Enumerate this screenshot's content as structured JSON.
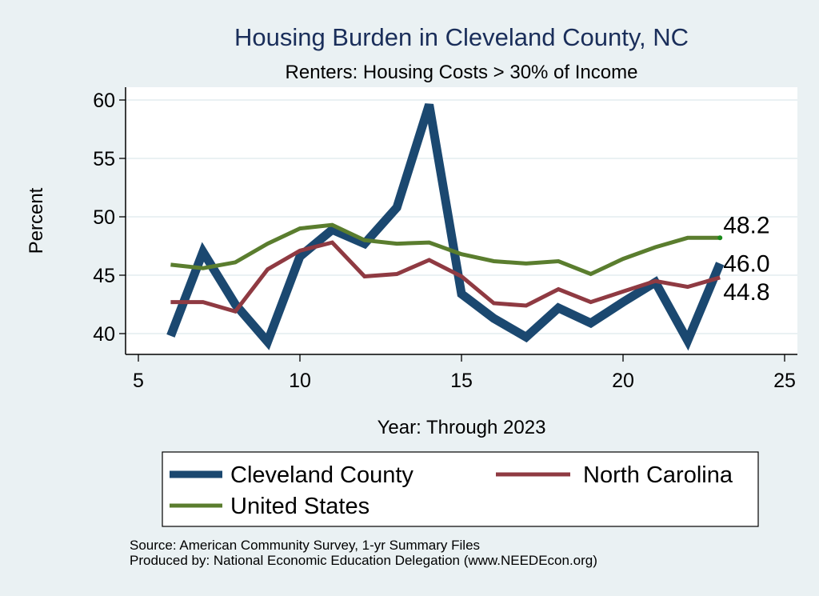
{
  "chart_data": {
    "type": "line",
    "title": "Housing Burden in Cleveland County, NC",
    "subtitle": "Renters: Housing Costs > 30% of Income",
    "xlabel": "Year: Through 2023",
    "ylabel": "Percent",
    "xlim": [
      5,
      25
    ],
    "ylim": [
      38.2,
      61.1
    ],
    "xticks": [
      5,
      10,
      15,
      20,
      25
    ],
    "yticks": [
      40,
      45,
      50,
      55,
      60
    ],
    "grid": true,
    "legend_position": "bottom",
    "x": [
      6,
      7,
      8,
      9,
      10,
      11,
      12,
      13,
      14,
      15,
      16,
      17,
      18,
      19,
      20,
      21,
      22,
      23
    ],
    "series": [
      {
        "name": "Cleveland County",
        "color": "#1b4870",
        "values": [
          39.8,
          47.0,
          42.5,
          39.3,
          46.6,
          48.9,
          47.7,
          50.8,
          59.6,
          43.4,
          41.3,
          39.7,
          42.2,
          40.9,
          42.7,
          44.4,
          39.4,
          46.0
        ],
        "end_label": "46.0"
      },
      {
        "name": "North Carolina",
        "color": "#8f3a42",
        "values": [
          42.7,
          42.7,
          41.9,
          45.5,
          47.1,
          47.8,
          44.9,
          45.1,
          46.3,
          44.9,
          42.6,
          42.4,
          43.8,
          42.7,
          43.6,
          44.5,
          44.0,
          44.8
        ],
        "end_label": "44.8"
      },
      {
        "name": "United States",
        "color": "#5a7d2e",
        "values": [
          45.9,
          45.6,
          46.1,
          47.7,
          49.0,
          49.3,
          48.0,
          47.7,
          47.8,
          46.8,
          46.2,
          46.0,
          46.2,
          45.1,
          46.4,
          47.4,
          48.2,
          48.2
        ],
        "end_label": "48.2",
        "end_marker_color": "#1a8a1a"
      }
    ],
    "notes": [
      "Source: American Community Survey, 1-yr Summary Files",
      "Produced by: National Economic Education Delegation (www.NEEDEcon.org)"
    ]
  }
}
